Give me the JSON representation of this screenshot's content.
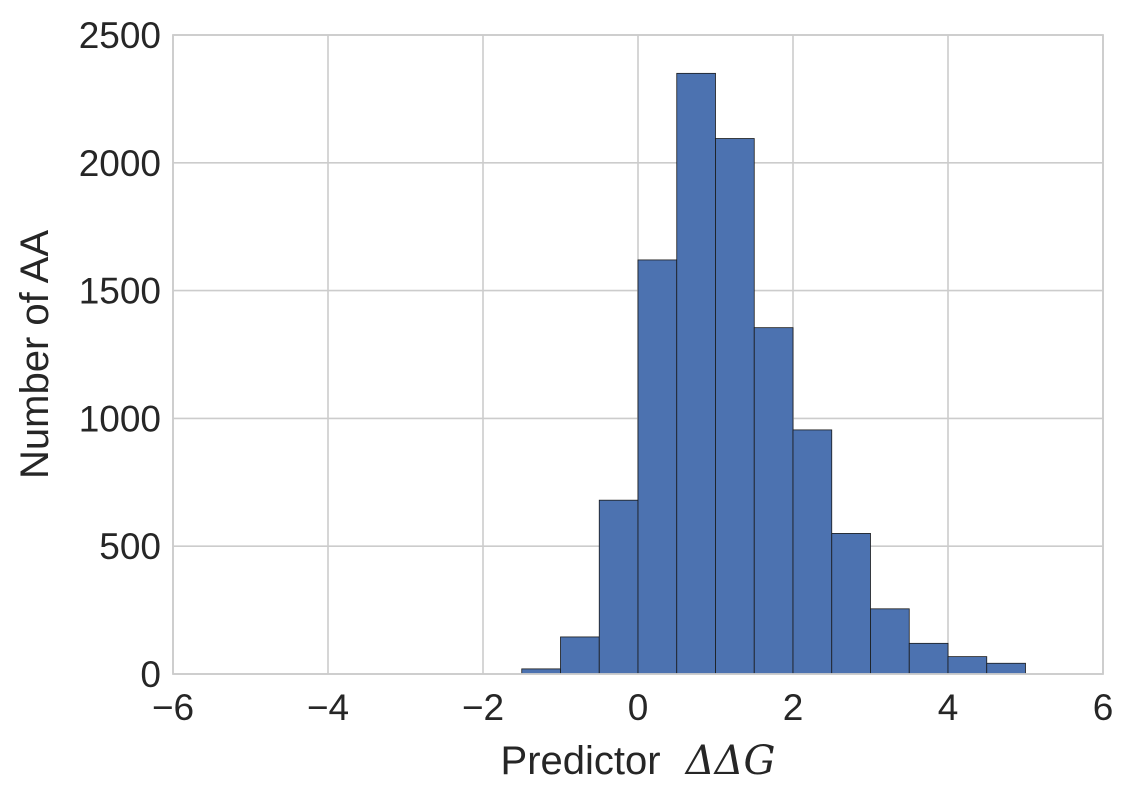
{
  "chart_data": {
    "type": "bar",
    "title": "",
    "xlabel": "Predictor",
    "xlabel_math": "ΔΔG",
    "ylabel": "Number of AA",
    "xlim": [
      -6,
      6
    ],
    "ylim": [
      0,
      2500
    ],
    "xticks": [
      -6,
      -4,
      -2,
      0,
      2,
      4,
      6
    ],
    "xtick_labels": [
      "−6",
      "−4",
      "−2",
      "0",
      "2",
      "4",
      "6"
    ],
    "yticks": [
      0,
      500,
      1000,
      1500,
      2000,
      2500
    ],
    "ytick_labels": [
      "0",
      "500",
      "1000",
      "1500",
      "2000",
      "2500"
    ],
    "grid": true,
    "bin_edges": [
      -1.5,
      -1.0,
      -0.5,
      0.0,
      0.5,
      1.0,
      1.5,
      2.0,
      2.5,
      3.0,
      3.5,
      4.0,
      4.5,
      5.0
    ],
    "values": [
      20,
      145,
      680,
      1620,
      2350,
      2095,
      1355,
      955,
      550,
      255,
      120,
      68,
      42
    ],
    "colors": {
      "bar": "#4c72b0",
      "bar_edge": "#1a1a1a",
      "grid": "#cccccc",
      "frame": "#cccccc",
      "text": "#262626"
    }
  }
}
